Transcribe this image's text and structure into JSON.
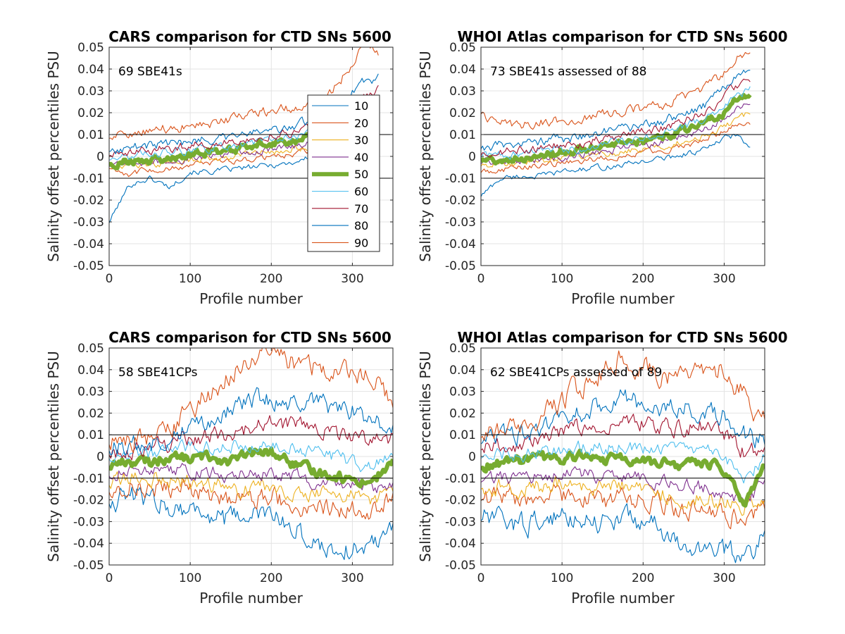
{
  "figure": {
    "panels": [
      {
        "title": "CARS comparison for CTD SNs 5600",
        "annotation": "69 SBE41s",
        "xlabel": "Profile number",
        "ylabel": "Salinity offset percentiles PSU"
      },
      {
        "title": "WHOI Atlas comparison for CTD SNs 5600",
        "annotation": "73 SBE41s assessed of 88",
        "xlabel": "Profile number",
        "ylabel": "Salinity offset percentiles PSU"
      },
      {
        "title": "CARS comparison for CTD SNs 5600",
        "annotation": "58 SBE41CPs",
        "xlabel": "Profile number",
        "ylabel": "Salinity offset percentiles PSU"
      },
      {
        "title": "WHOI Atlas comparison for CTD SNs 5600",
        "annotation": "62 SBE41CPs assessed of 89",
        "xlabel": "Profile number",
        "ylabel": "Salinity offset percentiles PSU"
      }
    ],
    "legend": [
      "10",
      "20",
      "30",
      "40",
      "50",
      "60",
      "70",
      "80",
      "90"
    ]
  },
  "chart_data": [
    {
      "type": "line",
      "title": "CARS comparison for CTD SNs 5600",
      "xlabel": "Profile number",
      "ylabel": "Salinity offset percentiles PSU",
      "xlim": [
        0,
        350
      ],
      "ylim": [
        -0.05,
        0.05
      ],
      "xticks": [
        0,
        100,
        200,
        300
      ],
      "yticks": [
        -0.05,
        -0.04,
        -0.03,
        -0.02,
        -0.01,
        0,
        0.01,
        0.02,
        0.03,
        0.04,
        0.05
      ],
      "grid": true,
      "reference_lines": [
        -0.01,
        0.01
      ],
      "legend_position": "inside right",
      "annotation": "69 SBE41s",
      "x": [
        0,
        25,
        50,
        75,
        100,
        125,
        150,
        175,
        200,
        225,
        250,
        275,
        300,
        315,
        333
      ],
      "series": [
        {
          "name": "10",
          "color": "#0072BD",
          "values": [
            -0.03,
            -0.013,
            -0.01,
            -0.014,
            -0.007,
            -0.007,
            -0.006,
            -0.005,
            -0.004,
            -0.003,
            0.0,
            0.002,
            0.007,
            0.01,
            0.015
          ]
        },
        {
          "name": "20",
          "color": "#D95319",
          "values": [
            -0.005,
            -0.008,
            -0.006,
            -0.006,
            -0.004,
            -0.003,
            -0.002,
            -0.001,
            0.0,
            0.001,
            0.003,
            0.006,
            0.01,
            0.015,
            0.02
          ]
        },
        {
          "name": "30",
          "color": "#EDB120",
          "values": [
            -0.004,
            -0.004,
            -0.004,
            -0.003,
            -0.002,
            -0.001,
            0.0,
            0.001,
            0.002,
            0.003,
            0.005,
            0.008,
            0.012,
            0.016,
            0.022
          ]
        },
        {
          "name": "40",
          "color": "#7E2F8E",
          "values": [
            -0.004,
            -0.003,
            -0.003,
            -0.002,
            -0.001,
            0.0,
            0.001,
            0.002,
            0.003,
            0.004,
            0.006,
            0.009,
            0.014,
            0.018,
            0.024
          ]
        },
        {
          "name": "50",
          "color": "#77AC30",
          "values": [
            -0.003,
            -0.002,
            -0.002,
            -0.001,
            0.001,
            0.002,
            0.003,
            0.005,
            0.006,
            0.007,
            0.009,
            0.012,
            0.016,
            0.02,
            0.026
          ]
        },
        {
          "name": "60",
          "color": "#4DBEEE",
          "values": [
            -0.001,
            0.0,
            0.001,
            0.002,
            0.003,
            0.004,
            0.005,
            0.006,
            0.008,
            0.009,
            0.011,
            0.014,
            0.019,
            0.022,
            0.028
          ]
        },
        {
          "name": "70",
          "color": "#A2142F",
          "values": [
            0.001,
            0.002,
            0.003,
            0.004,
            0.005,
            0.006,
            0.007,
            0.008,
            0.01,
            0.011,
            0.013,
            0.017,
            0.023,
            0.028,
            0.032
          ]
        },
        {
          "name": "80",
          "color": "#0072BD",
          "values": [
            0.003,
            0.004,
            0.005,
            0.006,
            0.007,
            0.008,
            0.009,
            0.011,
            0.012,
            0.014,
            0.016,
            0.021,
            0.03,
            0.035,
            0.036
          ]
        },
        {
          "name": "90",
          "color": "#D95319",
          "values": [
            0.009,
            0.01,
            0.012,
            0.013,
            0.014,
            0.015,
            0.017,
            0.019,
            0.021,
            0.022,
            0.025,
            0.03,
            0.042,
            0.052,
            0.047
          ]
        }
      ]
    },
    {
      "type": "line",
      "title": "WHOI Atlas comparison for CTD SNs 5600",
      "xlabel": "Profile number",
      "ylabel": "Salinity offset percentiles PSU",
      "xlim": [
        0,
        350
      ],
      "ylim": [
        -0.05,
        0.05
      ],
      "xticks": [
        0,
        100,
        200,
        300
      ],
      "yticks": [
        -0.05,
        -0.04,
        -0.03,
        -0.02,
        -0.01,
        0,
        0.01,
        0.02,
        0.03,
        0.04,
        0.05
      ],
      "grid": true,
      "reference_lines": [
        -0.01,
        0.01
      ],
      "annotation": "73 SBE41s assessed of 88",
      "x": [
        0,
        25,
        50,
        75,
        100,
        125,
        150,
        175,
        200,
        225,
        250,
        275,
        300,
        315,
        333
      ],
      "series": [
        {
          "name": "10",
          "color": "#0072BD",
          "values": [
            -0.018,
            -0.01,
            -0.009,
            -0.009,
            -0.007,
            -0.006,
            -0.005,
            -0.004,
            -0.002,
            -0.001,
            0.001,
            0.003,
            0.008,
            0.01,
            0.003
          ]
        },
        {
          "name": "20",
          "color": "#D95319",
          "values": [
            -0.007,
            -0.006,
            -0.005,
            -0.004,
            -0.003,
            -0.002,
            -0.001,
            0.0,
            0.002,
            0.003,
            0.005,
            0.007,
            0.012,
            0.015,
            0.016
          ]
        },
        {
          "name": "30",
          "color": "#EDB120",
          "values": [
            -0.004,
            -0.003,
            -0.003,
            -0.002,
            -0.001,
            0.0,
            0.001,
            0.002,
            0.004,
            0.005,
            0.007,
            0.01,
            0.013,
            0.017,
            0.02
          ]
        },
        {
          "name": "40",
          "color": "#7E2F8E",
          "values": [
            -0.003,
            -0.002,
            -0.002,
            -0.001,
            0.0,
            0.001,
            0.002,
            0.004,
            0.005,
            0.007,
            0.009,
            0.012,
            0.017,
            0.021,
            0.024
          ]
        },
        {
          "name": "50",
          "color": "#77AC30",
          "values": [
            -0.002,
            -0.001,
            -0.001,
            0.0,
            0.002,
            0.003,
            0.004,
            0.005,
            0.007,
            0.009,
            0.012,
            0.015,
            0.02,
            0.026,
            0.028
          ]
        },
        {
          "name": "60",
          "color": "#4DBEEE",
          "values": [
            0.0,
            0.001,
            0.001,
            0.002,
            0.003,
            0.004,
            0.006,
            0.007,
            0.009,
            0.011,
            0.013,
            0.017,
            0.023,
            0.028,
            0.031
          ]
        },
        {
          "name": "70",
          "color": "#A2142F",
          "values": [
            0.001,
            0.002,
            0.003,
            0.004,
            0.005,
            0.006,
            0.008,
            0.009,
            0.011,
            0.013,
            0.016,
            0.02,
            0.027,
            0.032,
            0.036
          ]
        },
        {
          "name": "80",
          "color": "#0072BD",
          "values": [
            0.004,
            0.005,
            0.006,
            0.007,
            0.008,
            0.009,
            0.011,
            0.012,
            0.014,
            0.016,
            0.019,
            0.023,
            0.031,
            0.038,
            0.041
          ]
        },
        {
          "name": "90",
          "color": "#D95319",
          "values": [
            0.02,
            0.015,
            0.014,
            0.016,
            0.016,
            0.018,
            0.02,
            0.021,
            0.022,
            0.024,
            0.027,
            0.031,
            0.038,
            0.045,
            0.048
          ]
        }
      ]
    },
    {
      "type": "line",
      "title": "CARS comparison for CTD SNs 5600",
      "xlabel": "Profile number",
      "ylabel": "Salinity offset percentiles PSU",
      "xlim": [
        0,
        350
      ],
      "ylim": [
        -0.05,
        0.05
      ],
      "xticks": [
        0,
        100,
        200,
        300
      ],
      "yticks": [
        -0.05,
        -0.04,
        -0.03,
        -0.02,
        -0.01,
        0,
        0.01,
        0.02,
        0.03,
        0.04,
        0.05
      ],
      "grid": true,
      "reference_lines": [
        -0.01,
        0.01
      ],
      "annotation": "58 SBE41CPs",
      "x": [
        0,
        25,
        50,
        75,
        100,
        125,
        150,
        175,
        200,
        225,
        250,
        275,
        300,
        325,
        350
      ],
      "series": [
        {
          "name": "10",
          "color": "#0072BD",
          "values": [
            -0.02,
            -0.018,
            -0.02,
            -0.022,
            -0.024,
            -0.027,
            -0.03,
            -0.026,
            -0.028,
            -0.032,
            -0.04,
            -0.042,
            -0.043,
            -0.04,
            -0.03
          ]
        },
        {
          "name": "20",
          "color": "#D95319",
          "values": [
            -0.015,
            -0.013,
            -0.014,
            -0.015,
            -0.016,
            -0.018,
            -0.02,
            -0.018,
            -0.019,
            -0.021,
            -0.024,
            -0.023,
            -0.025,
            -0.024,
            -0.02
          ]
        },
        {
          "name": "30",
          "color": "#EDB120",
          "values": [
            -0.012,
            -0.01,
            -0.01,
            -0.011,
            -0.012,
            -0.013,
            -0.015,
            -0.013,
            -0.014,
            -0.015,
            -0.017,
            -0.017,
            -0.019,
            -0.019,
            -0.016
          ]
        },
        {
          "name": "40",
          "color": "#7E2F8E",
          "values": [
            -0.008,
            -0.006,
            -0.006,
            -0.006,
            -0.007,
            -0.007,
            -0.009,
            -0.007,
            -0.008,
            -0.009,
            -0.011,
            -0.011,
            -0.014,
            -0.015,
            -0.011
          ]
        },
        {
          "name": "50",
          "color": "#77AC30",
          "values": [
            -0.004,
            -0.002,
            -0.003,
            0.0,
            -0.001,
            0.0,
            -0.002,
            0.001,
            0.002,
            -0.003,
            -0.007,
            -0.008,
            -0.011,
            -0.011,
            -0.003
          ]
        },
        {
          "name": "60",
          "color": "#4DBEEE",
          "values": [
            0.0,
            0.001,
            0.001,
            0.003,
            0.004,
            0.004,
            0.004,
            0.006,
            0.007,
            0.004,
            0.002,
            0.0,
            -0.003,
            -0.005,
            0.001
          ]
        },
        {
          "name": "70",
          "color": "#A2142F",
          "values": [
            0.002,
            0.003,
            0.004,
            0.006,
            0.008,
            0.01,
            0.011,
            0.013,
            0.015,
            0.014,
            0.013,
            0.011,
            0.008,
            0.006,
            0.008
          ]
        },
        {
          "name": "80",
          "color": "#0072BD",
          "values": [
            0.004,
            0.005,
            0.006,
            0.009,
            0.014,
            0.018,
            0.021,
            0.026,
            0.026,
            0.024,
            0.025,
            0.022,
            0.021,
            0.016,
            0.012
          ]
        },
        {
          "name": "90",
          "color": "#D95319",
          "values": [
            0.007,
            0.008,
            0.008,
            0.012,
            0.022,
            0.03,
            0.036,
            0.045,
            0.048,
            0.044,
            0.042,
            0.038,
            0.04,
            0.036,
            0.024
          ]
        }
      ]
    },
    {
      "type": "line",
      "title": "WHOI Atlas comparison for CTD SNs 5600",
      "xlabel": "Profile number",
      "ylabel": "Salinity offset percentiles PSU",
      "xlim": [
        0,
        350
      ],
      "ylim": [
        -0.05,
        0.05
      ],
      "xticks": [
        0,
        100,
        200,
        300
      ],
      "yticks": [
        -0.05,
        -0.04,
        -0.03,
        -0.02,
        -0.01,
        0,
        0.01,
        0.02,
        0.03,
        0.04,
        0.05
      ],
      "grid": true,
      "reference_lines": [
        -0.01,
        0.01
      ],
      "annotation": "62 SBE41CPs assessed of 89",
      "x": [
        0,
        25,
        50,
        75,
        100,
        125,
        150,
        175,
        200,
        225,
        250,
        275,
        300,
        325,
        350
      ],
      "series": [
        {
          "name": "10",
          "color": "#0072BD",
          "values": [
            -0.028,
            -0.03,
            -0.031,
            -0.03,
            -0.028,
            -0.027,
            -0.03,
            -0.028,
            -0.03,
            -0.034,
            -0.045,
            -0.04,
            -0.044,
            -0.046,
            -0.036
          ]
        },
        {
          "name": "20",
          "color": "#D95319",
          "values": [
            -0.019,
            -0.019,
            -0.02,
            -0.019,
            -0.018,
            -0.018,
            -0.02,
            -0.019,
            -0.02,
            -0.022,
            -0.025,
            -0.024,
            -0.026,
            -0.03,
            -0.022
          ]
        },
        {
          "name": "30",
          "color": "#EDB120",
          "values": [
            -0.014,
            -0.014,
            -0.015,
            -0.014,
            -0.013,
            -0.013,
            -0.015,
            -0.014,
            -0.015,
            -0.017,
            -0.019,
            -0.019,
            -0.021,
            -0.024,
            -0.017
          ]
        },
        {
          "name": "40",
          "color": "#7E2F8E",
          "values": [
            -0.011,
            -0.01,
            -0.01,
            -0.009,
            -0.008,
            -0.008,
            -0.01,
            -0.009,
            -0.01,
            -0.012,
            -0.014,
            -0.014,
            -0.017,
            -0.022,
            -0.012
          ]
        },
        {
          "name": "50",
          "color": "#77AC30",
          "values": [
            -0.005,
            -0.003,
            -0.002,
            -0.001,
            -0.002,
            0.001,
            -0.002,
            -0.001,
            -0.002,
            -0.003,
            -0.004,
            -0.003,
            -0.006,
            -0.021,
            -0.003
          ]
        },
        {
          "name": "60",
          "color": "#4DBEEE",
          "values": [
            0.0,
            0.001,
            0.001,
            0.002,
            0.003,
            0.005,
            0.004,
            0.005,
            0.004,
            0.003,
            0.002,
            0.003,
            -0.001,
            -0.01,
            -0.001
          ]
        },
        {
          "name": "70",
          "color": "#A2142F",
          "values": [
            0.004,
            0.005,
            0.006,
            0.008,
            0.011,
            0.014,
            0.015,
            0.017,
            0.015,
            0.013,
            0.013,
            0.014,
            0.01,
            0.002,
            0.004
          ]
        },
        {
          "name": "80",
          "color": "#0072BD",
          "values": [
            0.007,
            0.008,
            0.009,
            0.012,
            0.017,
            0.021,
            0.024,
            0.027,
            0.024,
            0.022,
            0.022,
            0.022,
            0.019,
            0.01,
            0.008
          ]
        },
        {
          "name": "90",
          "color": "#D95319",
          "values": [
            0.01,
            0.011,
            0.012,
            0.017,
            0.026,
            0.033,
            0.04,
            0.045,
            0.042,
            0.038,
            0.038,
            0.036,
            0.04,
            0.028,
            0.016
          ]
        }
      ]
    }
  ]
}
